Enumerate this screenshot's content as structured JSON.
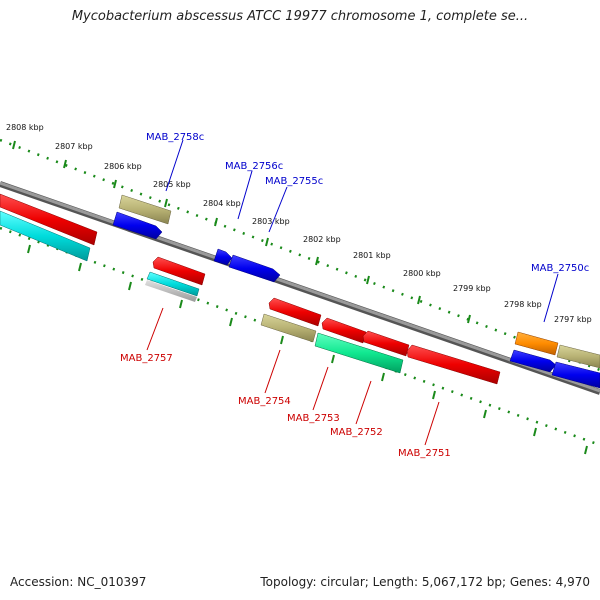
{
  "title": "Mycobacterium abscessus ATCC 19977 chromosome 1, complete se...",
  "footer": {
    "accession": "Accession: NC_010397",
    "info": "Topology: circular; Length: 5,067,172 bp; Genes: 4,970"
  },
  "colors": {
    "backbone": "#808080",
    "tick_track": "#1a8a1a",
    "plus_label": "#0000cc",
    "minus_label": "#cc0000"
  },
  "kbp_labels": [
    "2808 kbp",
    "2807 kbp",
    "2806 kbp",
    "2805 kbp",
    "2804 kbp",
    "2803 kbp",
    "2802 kbp",
    "2801 kbp",
    "2800 kbp",
    "2799 kbp",
    "2798 kbp",
    "2797 kbp"
  ],
  "gene_labels_top": [
    "MAB_2758c",
    "MAB_2756c",
    "MAB_2755c",
    "MAB_2750c"
  ],
  "gene_labels_bottom": [
    "MAB_2757",
    "MAB_2754",
    "MAB_2753",
    "MAB_2752",
    "MAB_2751"
  ],
  "features": [
    {
      "name": "feature-red-left",
      "color": "red"
    },
    {
      "name": "feature-cyan-left",
      "color": "cyan"
    },
    {
      "name": "feature-olive-2758",
      "color": "olive"
    },
    {
      "name": "feature-blue-2758c",
      "color": "blue"
    },
    {
      "name": "feature-blue-2756c",
      "color": "blue"
    },
    {
      "name": "feature-blue-2755c",
      "color": "blue"
    },
    {
      "name": "feature-red-2757",
      "color": "red"
    },
    {
      "name": "feature-cyan-2757",
      "color": "cyan"
    },
    {
      "name": "feature-red-2754a",
      "color": "red"
    },
    {
      "name": "feature-olive-2754",
      "color": "olive"
    },
    {
      "name": "feature-red-2753",
      "color": "red"
    },
    {
      "name": "feature-green-2753",
      "color": "springgreen"
    },
    {
      "name": "feature-red-2752",
      "color": "red"
    },
    {
      "name": "feature-red-2751",
      "color": "red"
    },
    {
      "name": "feature-orange-2750",
      "color": "orange"
    },
    {
      "name": "feature-olive-right",
      "color": "olive"
    },
    {
      "name": "feature-blue-2750c",
      "color": "blue"
    },
    {
      "name": "feature-blue-right",
      "color": "blue"
    }
  ]
}
